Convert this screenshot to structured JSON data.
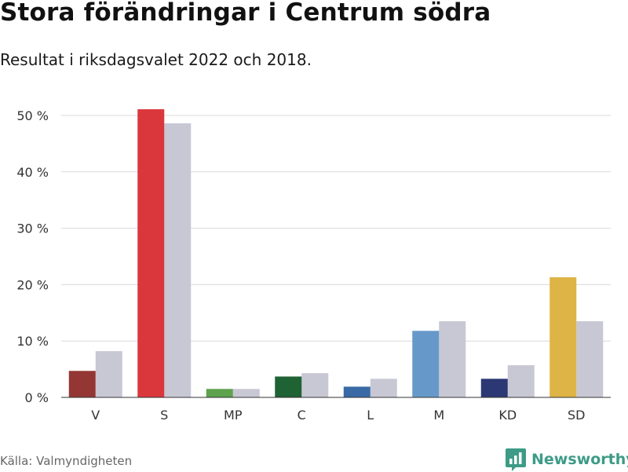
{
  "title": "Stora förändringar i Centrum södra",
  "subtitle": "Resultat i riksdagsvalet 2022 och 2018.",
  "source": "Källa: Valmyndigheten",
  "brand": {
    "name": "Newsworthy",
    "icon": "bar-chart-logo-icon",
    "color": "#3d9b87"
  },
  "chart_data": {
    "type": "bar",
    "categories": [
      "V",
      "S",
      "MP",
      "C",
      "L",
      "M",
      "KD",
      "SD"
    ],
    "series": [
      {
        "name": "2022",
        "values": [
          4.7,
          51.1,
          1.5,
          3.7,
          1.9,
          11.8,
          3.3,
          21.3
        ],
        "colors": [
          "#943734",
          "#da373d",
          "#5ea14e",
          "#1f6234",
          "#3a6aa5",
          "#6699ca",
          "#2c3874",
          "#ddb445"
        ]
      },
      {
        "name": "2018",
        "values": [
          8.2,
          48.6,
          1.5,
          4.3,
          3.3,
          13.5,
          5.7,
          13.5
        ],
        "color": "#c8c7d4"
      }
    ],
    "ylim": [
      0,
      50
    ],
    "yticks": [
      0,
      10,
      20,
      30,
      40,
      50
    ],
    "ytick_labels": [
      "0 %",
      "10 %",
      "20 %",
      "30 %",
      "40 %",
      "50 %"
    ],
    "grid": true,
    "xlabel": "",
    "ylabel": ""
  }
}
